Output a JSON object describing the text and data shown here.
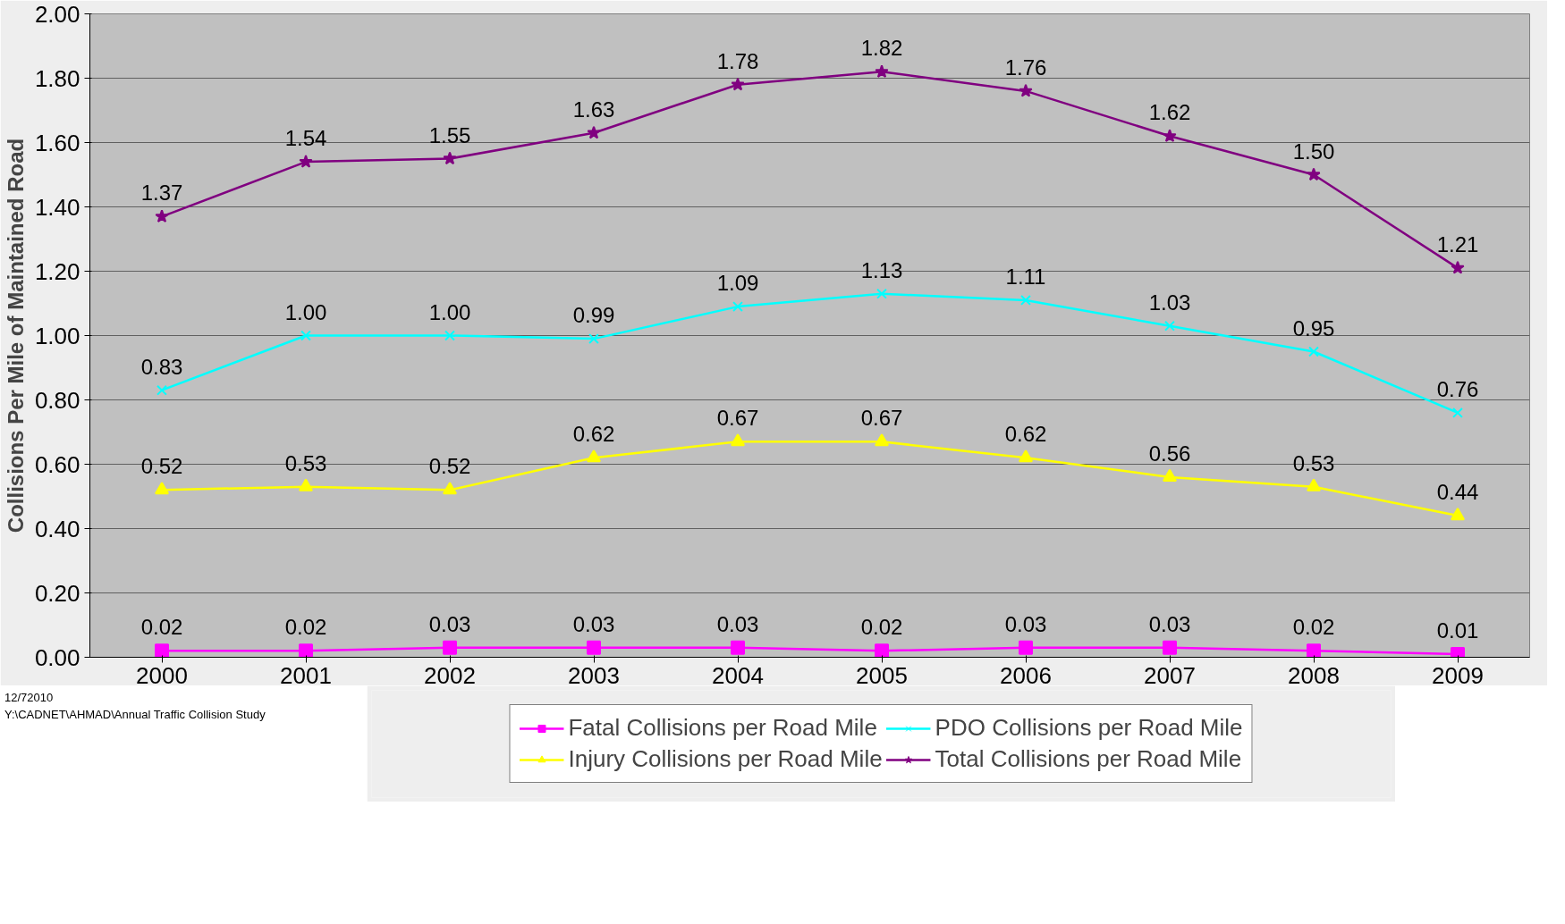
{
  "chart_data": {
    "type": "line",
    "ylabel": "Collisions Per Mile of Maintained Road",
    "categories": [
      "2000",
      "2001",
      "2002",
      "2003",
      "2004",
      "2005",
      "2006",
      "2007",
      "2008",
      "2009"
    ],
    "series": [
      {
        "name": "Fatal Collisions per Road Mile",
        "color": "#ff00ff",
        "marker": "square",
        "values": [
          0.02,
          0.02,
          0.03,
          0.03,
          0.03,
          0.02,
          0.03,
          0.03,
          0.02,
          0.01
        ],
        "value_labels": [
          "0.02",
          "0.02",
          "0.03",
          "0.03",
          "0.03",
          "0.02",
          "0.03",
          "0.03",
          "0.02",
          "0.01"
        ]
      },
      {
        "name": "Injury Collisions per Road Mile",
        "color": "#ffff00",
        "marker": "triangle",
        "values": [
          0.52,
          0.53,
          0.52,
          0.62,
          0.67,
          0.67,
          0.62,
          0.56,
          0.53,
          0.44
        ],
        "value_labels": [
          "0.52",
          "0.53",
          "0.52",
          "0.62",
          "0.67",
          "0.67",
          "0.62",
          "0.56",
          "0.53",
          "0.44"
        ]
      },
      {
        "name": "PDO Collisions per Road Mile",
        "color": "#00ffff",
        "marker": "cross",
        "values": [
          0.83,
          1.0,
          1.0,
          0.99,
          1.09,
          1.13,
          1.11,
          1.03,
          0.95,
          0.76
        ],
        "value_labels": [
          "0.83",
          "1.00",
          "1.00",
          "0.99",
          "1.09",
          "1.13",
          "1.11",
          "1.03",
          "0.95",
          "0.76"
        ]
      },
      {
        "name": "Total Collisions per Road Mile",
        "color": "#800080",
        "marker": "star",
        "values": [
          1.37,
          1.54,
          1.55,
          1.63,
          1.78,
          1.82,
          1.76,
          1.62,
          1.5,
          1.21
        ],
        "value_labels": [
          "1.37",
          "1.54",
          "1.55",
          "1.63",
          "1.78",
          "1.82",
          "1.76",
          "1.62",
          "1.50",
          "1.21"
        ]
      }
    ],
    "ylim": [
      0,
      2
    ],
    "yticks": [
      {
        "value": 0,
        "label": "0.00"
      },
      {
        "value": 0.2,
        "label": "0.20"
      },
      {
        "value": 0.4,
        "label": "0.40"
      },
      {
        "value": 0.6,
        "label": "0.60"
      },
      {
        "value": 0.8,
        "label": "0.80"
      },
      {
        "value": 1.0,
        "label": "1.00"
      },
      {
        "value": 1.2,
        "label": "1.20"
      },
      {
        "value": 1.4,
        "label": "1.40"
      },
      {
        "value": 1.6,
        "label": "1.60"
      },
      {
        "value": 1.8,
        "label": "1.80"
      },
      {
        "value": 2.0,
        "label": "2.00"
      }
    ],
    "grid": "y",
    "legend": "bottom",
    "line_style": "solid",
    "annotations": [
      "12/72010",
      "Y:\\CADNET\\AHMAD\\Annual Traffic Collision Study"
    ]
  }
}
